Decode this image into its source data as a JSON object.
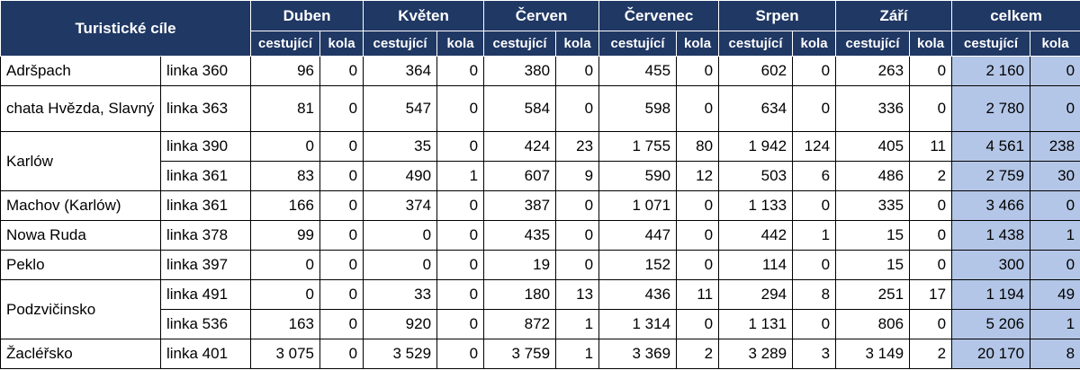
{
  "header": {
    "title": "Turistické cíle",
    "groups": [
      "Duben",
      "Květen",
      "Červen",
      "Červenec",
      "Srpen",
      "Září",
      "celkem"
    ],
    "subheaders": [
      "cestující",
      "kola",
      "cestující",
      "kola",
      "cestující",
      "kola",
      "cestující",
      "kola",
      "cestující",
      "kola",
      "cestující",
      "kola",
      "cestující",
      "kola"
    ]
  },
  "table": {
    "groups": [
      {
        "place": "Adršpach",
        "lines": [
          {
            "line": "linka 360",
            "values": [
              "96",
              "0",
              "364",
              "0",
              "380",
              "0",
              "455",
              "0",
              "602",
              "0",
              "263",
              "0",
              "2 160",
              "0"
            ]
          }
        ]
      },
      {
        "place": "chata Hvězda, Slavný",
        "lines": [
          {
            "line": "linka 363",
            "values": [
              "81",
              "0",
              "547",
              "0",
              "584",
              "0",
              "598",
              "0",
              "634",
              "0",
              "336",
              "0",
              "2 780",
              "0"
            ]
          }
        ]
      },
      {
        "place": "Karlów",
        "lines": [
          {
            "line": "linka 390",
            "values": [
              "0",
              "0",
              "35",
              "0",
              "424",
              "23",
              "1 755",
              "80",
              "1 942",
              "124",
              "405",
              "11",
              "4 561",
              "238"
            ]
          },
          {
            "line": "linka 361",
            "values": [
              "83",
              "0",
              "490",
              "1",
              "607",
              "9",
              "590",
              "12",
              "503",
              "6",
              "486",
              "2",
              "2 759",
              "30"
            ]
          }
        ]
      },
      {
        "place": "Machov (Karlów)",
        "lines": [
          {
            "line": "linka 361",
            "values": [
              "166",
              "0",
              "374",
              "0",
              "387",
              "0",
              "1 071",
              "0",
              "1 133",
              "0",
              "335",
              "0",
              "3 466",
              "0"
            ]
          }
        ]
      },
      {
        "place": "Nowa Ruda",
        "lines": [
          {
            "line": "linka 378",
            "values": [
              "99",
              "0",
              "0",
              "0",
              "435",
              "0",
              "447",
              "0",
              "442",
              "1",
              "15",
              "0",
              "1 438",
              "1"
            ]
          }
        ]
      },
      {
        "place": "Peklo",
        "lines": [
          {
            "line": "linka 397",
            "values": [
              "0",
              "0",
              "0",
              "0",
              "19",
              "0",
              "152",
              "0",
              "114",
              "0",
              "15",
              "0",
              "300",
              "0"
            ]
          }
        ]
      },
      {
        "place": "Podzvičinsko",
        "lines": [
          {
            "line": "linka 491",
            "values": [
              "0",
              "0",
              "33",
              "0",
              "180",
              "13",
              "436",
              "11",
              "294",
              "8",
              "251",
              "17",
              "1 194",
              "49"
            ]
          },
          {
            "line": "linka 536",
            "values": [
              "163",
              "0",
              "920",
              "0",
              "872",
              "1",
              "1 314",
              "0",
              "1 131",
              "0",
              "806",
              "0",
              "5 206",
              "1"
            ]
          }
        ]
      },
      {
        "place": "Žacléřsko",
        "lines": [
          {
            "line": "linka 401",
            "values": [
              "3 075",
              "0",
              "3 529",
              "0",
              "3 759",
              "1",
              "3 369",
              "2",
              "3 289",
              "3",
              "3 149",
              "2",
              "20 170",
              "8"
            ]
          }
        ]
      }
    ]
  }
}
